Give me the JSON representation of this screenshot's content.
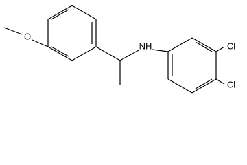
{
  "atoms": [
    {
      "label": "O"
    },
    {
      "label": "NH"
    },
    {
      "label": "Cl"
    },
    {
      "label": "Cl"
    }
  ]
}
